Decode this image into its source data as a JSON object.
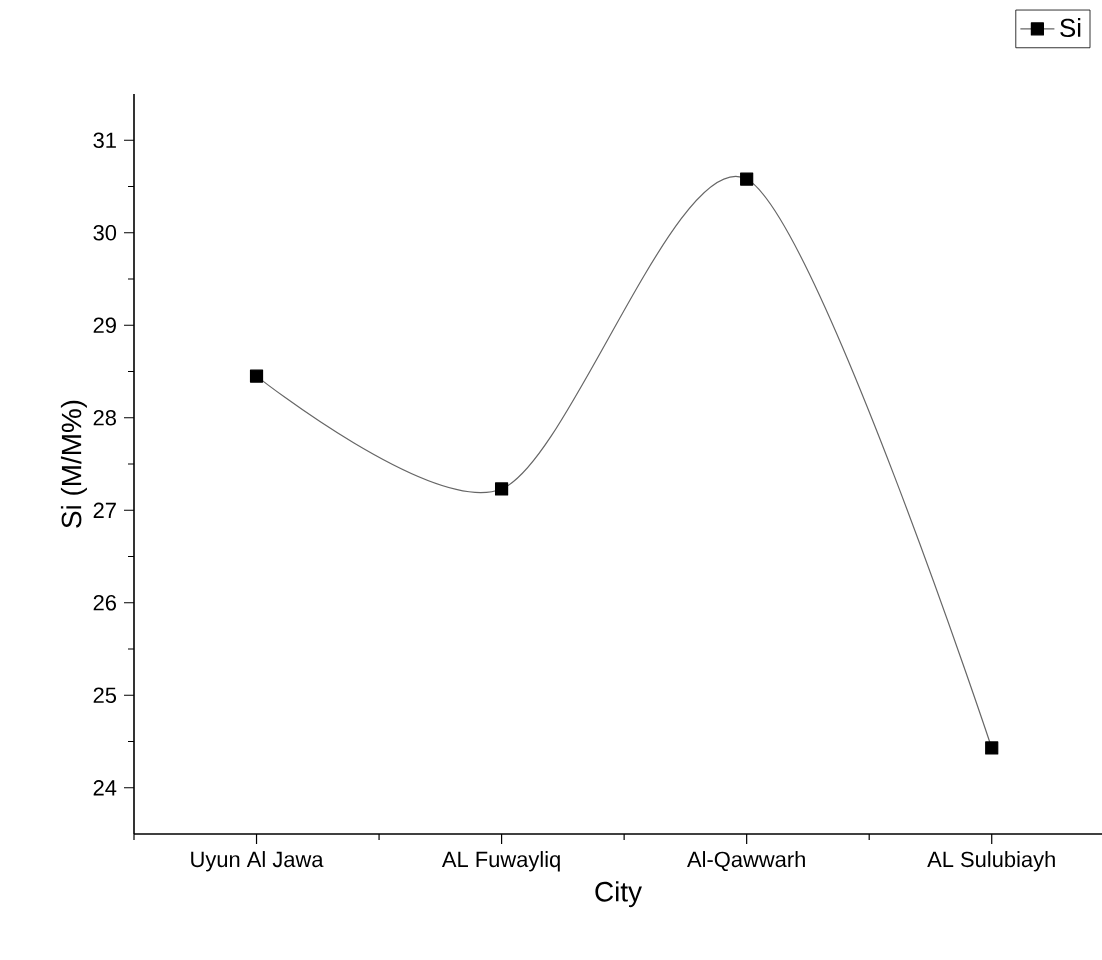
{
  "chart_data": {
    "type": "line",
    "xlabel": "City",
    "ylabel": "Si (M/M%)",
    "categories": [
      "Uyun Al Jawa",
      "AL Fuwayliq",
      "Al-Qawwarh",
      "AL Sulubiayh"
    ],
    "series": [
      {
        "name": "Si",
        "color": "#000000",
        "values": [
          28.45,
          27.23,
          30.58,
          24.43
        ]
      }
    ],
    "ylim": [
      23.5,
      31.5
    ],
    "yticks": [
      24,
      25,
      26,
      27,
      28,
      29,
      30,
      31
    ],
    "marker": "square",
    "legend": "top right",
    "grid": false
  }
}
